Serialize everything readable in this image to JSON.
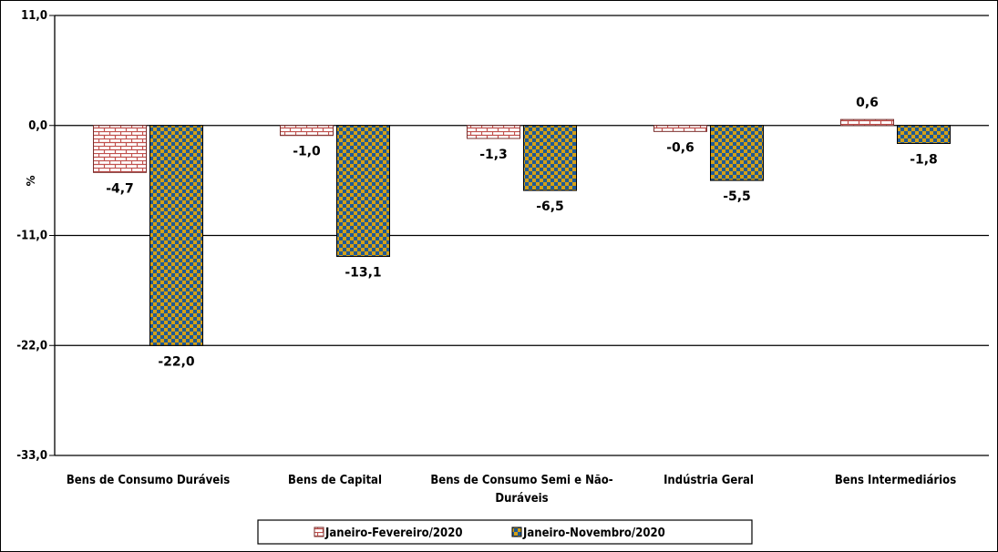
{
  "chart_data": {
    "type": "bar",
    "categories": [
      [
        "Bens de Consumo Duráveis"
      ],
      [
        "Bens de Capital"
      ],
      [
        "Bens de Consumo Semi e Não-",
        "Duráveis"
      ],
      [
        "Indústria Geral"
      ],
      [
        "Bens Intermediários"
      ]
    ],
    "series": [
      {
        "name": "Janeiro-Fevereiro/2020",
        "values": [
          -4.7,
          -1.0,
          -1.3,
          -0.6,
          0.6
        ],
        "labels": [
          "-4,7",
          "-1,0",
          "-1,3",
          "-0,6",
          "0,6"
        ],
        "color": "#c0504d",
        "pattern": "brick"
      },
      {
        "name": "Janeiro-Novembro/2020",
        "values": [
          -22.0,
          -13.1,
          -6.5,
          -5.5,
          -1.8
        ],
        "labels": [
          "-22,0",
          "-13,1",
          "-6,5",
          "-5,5",
          "-1,8"
        ],
        "color": "#1f5a96",
        "pattern": "checker-gold"
      }
    ],
    "yticks": [
      11,
      0,
      -11,
      -22,
      -33
    ],
    "ytick_labels": [
      "11,0",
      "0,0",
      "-11,0",
      "-22,0",
      "-33,0"
    ],
    "ylim": [
      -33,
      11
    ],
    "ylabel": "%",
    "xlabel": "",
    "title": "",
    "grid": "horizontal",
    "legend": "bottom"
  }
}
